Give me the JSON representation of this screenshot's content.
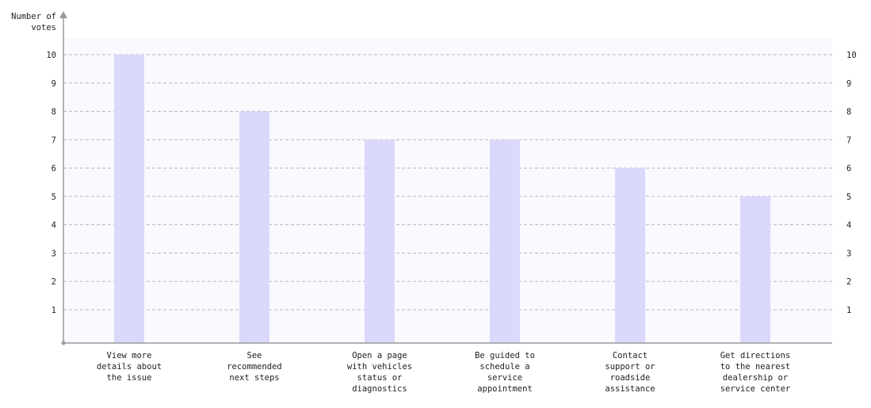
{
  "chart_data": {
    "type": "bar",
    "ylabel": [
      "Number of",
      "votes"
    ],
    "categories": [
      [
        "View more",
        "details about",
        "the issue"
      ],
      [
        "See",
        "recommended",
        "next steps"
      ],
      [
        "Open a page",
        "with vehicles",
        "status or",
        "diagnostics"
      ],
      [
        "Be guided to",
        "schedule a",
        "service",
        "appointment"
      ],
      [
        "Contact",
        "support or",
        "roadside",
        "assistance"
      ],
      [
        "Get directions",
        "to the nearest",
        "dealership or",
        "service center"
      ]
    ],
    "values": [
      10,
      8,
      7,
      7,
      6,
      5
    ],
    "ylim": [
      0,
      10
    ],
    "yticks": [
      1,
      2,
      3,
      4,
      5,
      6,
      7,
      8,
      9,
      10
    ],
    "grid": true,
    "bar_color": "#dad9fb",
    "plot_background": "#f9f9fe",
    "axis_color": "#9a9a9a",
    "grid_color": "#b9b9b9"
  }
}
